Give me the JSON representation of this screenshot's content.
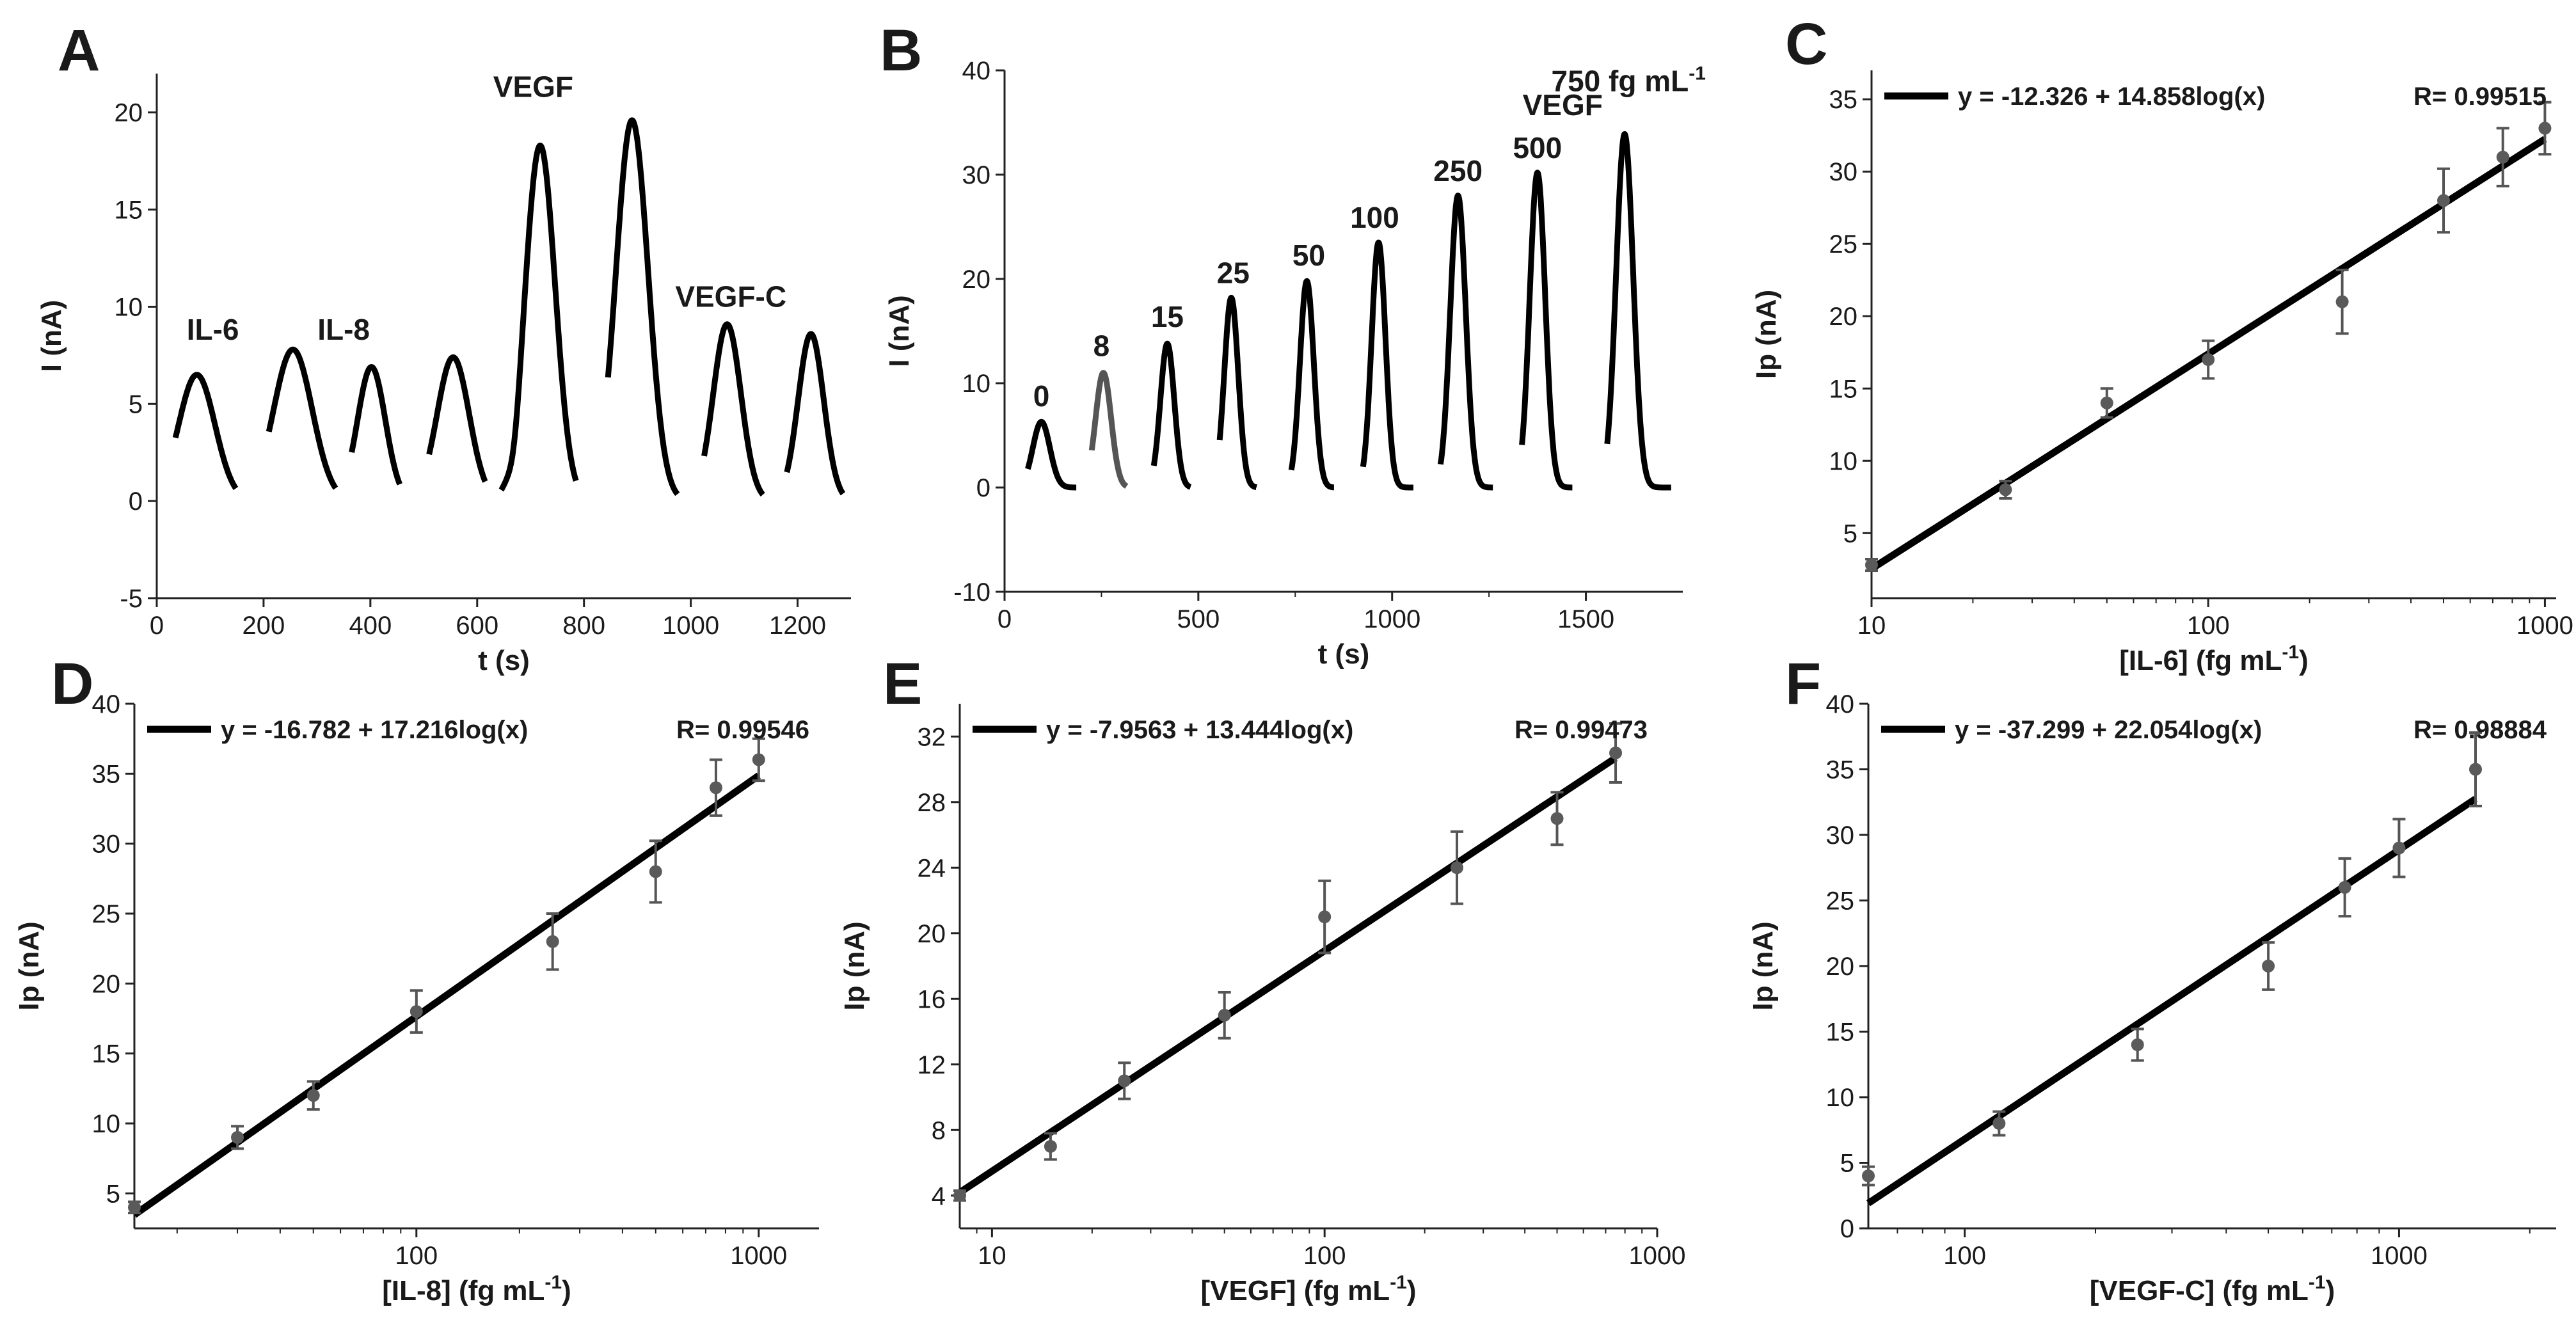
{
  "chart_data": [
    {
      "panel": "A",
      "type": "line",
      "title": "",
      "xlabel": "t (s)",
      "ylabel": "I (nA)",
      "xlim": [
        0,
        1300
      ],
      "ylim": [
        -5,
        22
      ],
      "xticks": [
        0,
        200,
        400,
        600,
        800,
        1000,
        1200
      ],
      "yticks": [
        -5,
        0,
        5,
        10,
        15,
        20
      ],
      "peaks": [
        {
          "center": 75,
          "height": 6.5,
          "width": 34,
          "color": "#000000",
          "start": 35,
          "end": 148,
          "dip": 0
        },
        {
          "center": 255,
          "height": 7.8,
          "width": 36,
          "color": "#000000",
          "start": 210,
          "end": 335,
          "dip": 0
        },
        {
          "center": 402,
          "height": 6.9,
          "width": 26,
          "color": "#000000",
          "start": 365,
          "end": 455,
          "dip": 0
        },
        {
          "center": 555,
          "height": 7.4,
          "width": 30,
          "color": "#000000",
          "start": 510,
          "end": 615,
          "dip": 0
        },
        {
          "center": 718,
          "height": 18.3,
          "width": 28,
          "color": "#000000",
          "start": 645,
          "end": 785,
          "dip": -1.0
        },
        {
          "center": 890,
          "height": 19.6,
          "width": 30,
          "color": "#000000",
          "start": 845,
          "end": 975,
          "dip": 0
        },
        {
          "center": 1068,
          "height": 9.1,
          "width": 26,
          "color": "#000000",
          "start": 1025,
          "end": 1135,
          "dip": 0
        },
        {
          "center": 1225,
          "height": 8.6,
          "width": 24,
          "color": "#000000",
          "start": 1180,
          "end": 1285,
          "dip": 0
        }
      ],
      "annotations": [
        {
          "text": "IL-6",
          "x": 105,
          "y": 8.3
        },
        {
          "text": "IL-8",
          "x": 350,
          "y": 8.3
        },
        {
          "text": "VEGF",
          "x": 705,
          "y": 20.8
        },
        {
          "text": "VEGF-C",
          "x": 1075,
          "y": 10.0
        }
      ]
    },
    {
      "panel": "B",
      "type": "line",
      "title": "",
      "xlabel": "t (s)",
      "ylabel": "I (nA)",
      "xlim": [
        0,
        1750
      ],
      "ylim": [
        -10,
        40
      ],
      "xticks": [
        0,
        500,
        1000,
        1500
      ],
      "minor_xticks": [
        250,
        750,
        1250
      ],
      "yticks": [
        -10,
        0,
        10,
        20,
        30,
        40
      ],
      "peaks": [
        {
          "center": 95,
          "height": 6.3,
          "width": 22,
          "color": "#000000",
          "start": 60,
          "end": 185,
          "dip": 0
        },
        {
          "center": 255,
          "height": 11.0,
          "width": 20,
          "color": "#555555",
          "start": 225,
          "end": 315,
          "dip": 0
        },
        {
          "center": 420,
          "height": 13.8,
          "width": 18,
          "color": "#000000",
          "start": 385,
          "end": 480,
          "dip": 0
        },
        {
          "center": 585,
          "height": 18.2,
          "width": 18,
          "color": "#000000",
          "start": 555,
          "end": 650,
          "dip": 0
        },
        {
          "center": 780,
          "height": 19.8,
          "width": 18,
          "color": "#000000",
          "start": 740,
          "end": 850,
          "dip": 0
        },
        {
          "center": 965,
          "height": 23.5,
          "width": 18,
          "color": "#000000",
          "start": 925,
          "end": 1055,
          "dip": 0
        },
        {
          "center": 1170,
          "height": 28.0,
          "width": 20,
          "color": "#000000",
          "start": 1125,
          "end": 1260,
          "dip": 0
        },
        {
          "center": 1375,
          "height": 30.2,
          "width": 20,
          "color": "#000000",
          "start": 1335,
          "end": 1465,
          "dip": 0
        },
        {
          "center": 1600,
          "height": 33.9,
          "width": 22,
          "color": "#000000",
          "start": 1555,
          "end": 1720,
          "dip": 0
        }
      ],
      "annotations": [
        {
          "text": "0",
          "x": 95,
          "y": 7.8
        },
        {
          "text": "8",
          "x": 250,
          "y": 12.6
        },
        {
          "text": "15",
          "x": 420,
          "y": 15.4
        },
        {
          "text": "25",
          "x": 590,
          "y": 19.6
        },
        {
          "text": "50",
          "x": 785,
          "y": 21.3
        },
        {
          "text": "100",
          "x": 955,
          "y": 24.9
        },
        {
          "text": "250",
          "x": 1170,
          "y": 29.4
        },
        {
          "text": "500",
          "x": 1375,
          "y": 31.6
        },
        {
          "text": "VEGF",
          "x": 1440,
          "y": 35.7
        }
      ],
      "unit_label": {
        "prefix": "750 fg mL",
        "sup": "-1"
      }
    },
    {
      "panel": "C",
      "type": "scatter",
      "xscale": "log",
      "xlabel": {
        "prefix": "[IL-6] (fg mL",
        "sup": "-1",
        "suffix": ")"
      },
      "ylabel": "Ip (nA)",
      "xlim": [
        10,
        1080
      ],
      "ylim": [
        0.5,
        37
      ],
      "xticks": [
        10,
        100,
        1000
      ],
      "yticks": [
        5,
        10,
        15,
        20,
        25,
        30,
        35
      ],
      "fit": {
        "intercept": -12.326,
        "slope": 14.858,
        "x_range": [
          10,
          1000
        ]
      },
      "equation": "y = -12.326 + 14.858log(x)",
      "r_text": "R= 0.99515",
      "points": [
        {
          "x": 10,
          "y": 2.8,
          "err": 0.4
        },
        {
          "x": 25,
          "y": 8.0,
          "err": 0.6
        },
        {
          "x": 50,
          "y": 14.0,
          "err": 1.0
        },
        {
          "x": 100,
          "y": 17.0,
          "err": 1.3
        },
        {
          "x": 250,
          "y": 21.0,
          "err": 2.2
        },
        {
          "x": 500,
          "y": 28.0,
          "err": 2.2
        },
        {
          "x": 750,
          "y": 31.0,
          "err": 2.0
        },
        {
          "x": 1000,
          "y": 33.0,
          "err": 1.8
        }
      ]
    },
    {
      "panel": "D",
      "type": "scatter",
      "xscale": "log",
      "xlabel": {
        "prefix": "[IL-8] (fg mL",
        "sup": "-1",
        "suffix": ")"
      },
      "ylabel": "Ip (nA)",
      "xlim": [
        15,
        1500
      ],
      "ylim": [
        2.5,
        40
      ],
      "xticks": [
        100,
        1000
      ],
      "yticks": [
        5,
        10,
        15,
        20,
        25,
        30,
        35,
        40
      ],
      "fit": {
        "intercept": -16.782,
        "slope": 17.216,
        "x_range": [
          15,
          1000
        ]
      },
      "equation": "y = -16.782 + 17.216log(x)",
      "r_text": "R= 0.99546",
      "points": [
        {
          "x": 15,
          "y": 4.0,
          "err": 0.4
        },
        {
          "x": 30,
          "y": 9.0,
          "err": 0.8
        },
        {
          "x": 50,
          "y": 12.0,
          "err": 1.0
        },
        {
          "x": 100,
          "y": 18.0,
          "err": 1.5
        },
        {
          "x": 250,
          "y": 23.0,
          "err": 2.0
        },
        {
          "x": 500,
          "y": 28.0,
          "err": 2.2
        },
        {
          "x": 750,
          "y": 34.0,
          "err": 2.0
        },
        {
          "x": 1000,
          "y": 36.0,
          "err": 1.5
        }
      ]
    },
    {
      "panel": "E",
      "type": "scatter",
      "xscale": "log",
      "xlabel": {
        "prefix": "[VEGF] (fg mL",
        "sup": "-1",
        "suffix": ")"
      },
      "ylabel": "Ip (nA)",
      "xlim": [
        8,
        1000
      ],
      "ylim": [
        2,
        34
      ],
      "xticks": [
        10,
        100,
        1000
      ],
      "yticks": [
        4,
        8,
        12,
        16,
        20,
        24,
        28,
        32
      ],
      "fit": {
        "intercept": -7.9563,
        "slope": 13.444,
        "x_range": [
          8,
          750
        ]
      },
      "equation": "y = -7.9563 + 13.444log(x)",
      "r_text": "R= 0.99473",
      "points": [
        {
          "x": 8,
          "y": 4.0,
          "err": 0.3
        },
        {
          "x": 15,
          "y": 7.0,
          "err": 0.8
        },
        {
          "x": 25,
          "y": 11.0,
          "err": 1.1
        },
        {
          "x": 50,
          "y": 15.0,
          "err": 1.4
        },
        {
          "x": 100,
          "y": 21.0,
          "err": 2.2
        },
        {
          "x": 250,
          "y": 24.0,
          "err": 2.2
        },
        {
          "x": 500,
          "y": 27.0,
          "err": 1.6
        },
        {
          "x": 750,
          "y": 31.0,
          "err": 1.8
        }
      ]
    },
    {
      "panel": "F",
      "type": "scatter",
      "xscale": "log",
      "xlabel": {
        "prefix": "[VEGF-C] (fg mL",
        "sup": "-1",
        "suffix": ")"
      },
      "ylabel": "Ip (nA)",
      "xlim": [
        60,
        2300
      ],
      "ylim": [
        0,
        40
      ],
      "xticks": [
        100,
        1000
      ],
      "yticks": [
        0,
        5,
        10,
        15,
        20,
        25,
        30,
        35,
        40
      ],
      "fit": {
        "intercept": -37.299,
        "slope": 22.054,
        "x_range": [
          60,
          1500
        ]
      },
      "equation": "y = -37.299 + 22.054log(x)",
      "r_text": "R= 0.98884",
      "points": [
        {
          "x": 60,
          "y": 4.0,
          "err": 0.7
        },
        {
          "x": 120,
          "y": 8.0,
          "err": 0.9
        },
        {
          "x": 250,
          "y": 14.0,
          "err": 1.2
        },
        {
          "x": 500,
          "y": 20.0,
          "err": 1.8
        },
        {
          "x": 750,
          "y": 26.0,
          "err": 2.2
        },
        {
          "x": 1000,
          "y": 29.0,
          "err": 2.2
        },
        {
          "x": 1500,
          "y": 35.0,
          "err": 2.8
        }
      ]
    }
  ]
}
